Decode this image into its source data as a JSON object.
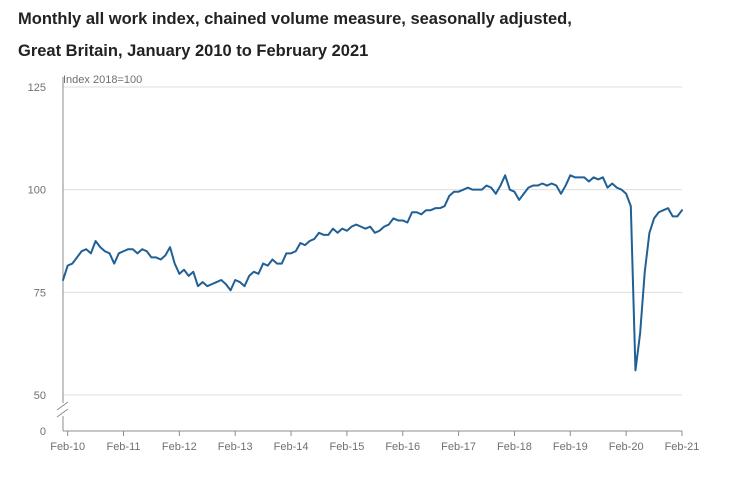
{
  "chart_data": {
    "type": "line",
    "title_line_1": "Monthly all work index, chained volume measure, seasonally adjusted,",
    "title_line_2": "Great Britain, January 2010 to February 2021",
    "ylabel": "Index 2018=100",
    "xlabel": "",
    "y_ticks": [
      "125",
      "100",
      "75",
      "50",
      "0"
    ],
    "y_break": "50 to 0",
    "ylim": [
      50,
      125
    ],
    "grid": true,
    "x_tick_labels": [
      "Feb-10",
      "Feb-11",
      "Feb-12",
      "Feb-13",
      "Feb-14",
      "Feb-15",
      "Feb-16",
      "Feb-17",
      "Feb-18",
      "Feb-19",
      "Feb-20",
      "Feb-21"
    ],
    "x_start": "Jan-10",
    "x_end": "Feb-21",
    "series": [
      {
        "name": "Monthly all work index",
        "color": "#206095",
        "values": [
          78.0,
          81.5,
          82.0,
          83.5,
          85.0,
          85.5,
          84.5,
          87.5,
          86.0,
          85.0,
          84.5,
          82.0,
          84.5,
          85.0,
          85.5,
          85.5,
          84.5,
          85.5,
          85.0,
          83.5,
          83.5,
          83.0,
          84.0,
          86.0,
          82.0,
          79.5,
          80.5,
          79.0,
          80.0,
          76.5,
          77.5,
          76.5,
          77.0,
          77.5,
          78.0,
          77.0,
          75.5,
          78.0,
          77.5,
          76.5,
          79.0,
          80.0,
          79.5,
          82.0,
          81.5,
          83.0,
          82.0,
          82.0,
          84.5,
          84.5,
          85.0,
          87.0,
          86.5,
          87.5,
          88.0,
          89.5,
          89.0,
          89.0,
          90.5,
          89.5,
          90.5,
          90.0,
          91.0,
          91.5,
          91.0,
          90.5,
          91.0,
          89.5,
          90.0,
          91.0,
          91.5,
          93.0,
          92.5,
          92.5,
          92.0,
          94.5,
          94.5,
          94.0,
          95.0,
          95.0,
          95.5,
          95.5,
          96.0,
          98.5,
          99.5,
          99.5,
          100.0,
          100.5,
          100.0,
          100.0,
          100.0,
          101.0,
          100.5,
          99.0,
          101.0,
          103.5,
          100.0,
          99.5,
          97.5,
          99.0,
          100.5,
          101.0,
          101.0,
          101.5,
          101.0,
          101.5,
          101.0,
          99.0,
          101.0,
          103.5,
          103.0,
          103.0,
          103.0,
          102.0,
          103.0,
          102.5,
          103.0,
          100.5,
          101.5,
          100.5,
          100.0,
          99.0,
          96.0,
          56.0,
          65.0,
          80.0,
          89.5,
          93.0,
          94.5,
          95.0,
          95.5,
          93.5,
          93.5,
          95.0
        ]
      }
    ]
  },
  "colors": {
    "line": "#206095",
    "grid": "#dedede",
    "axis": "#8c8c8c",
    "text": "#707071",
    "title": "#222222"
  }
}
